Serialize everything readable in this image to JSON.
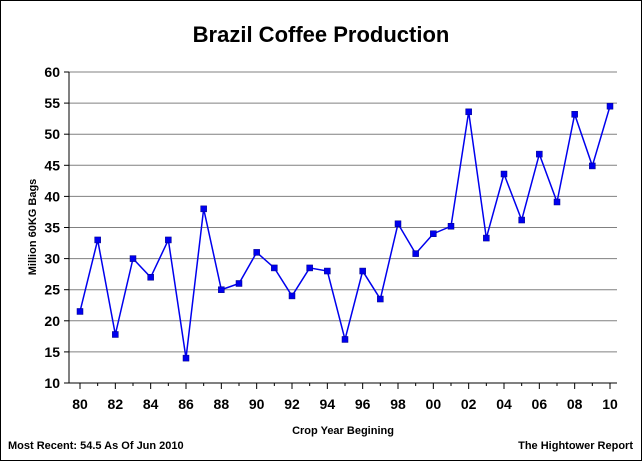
{
  "chart_data": {
    "type": "line",
    "title": "Brazil Coffee Production",
    "xlabel": "Crop Year Begining",
    "ylabel": "Million 60KG Bags",
    "ylim": [
      10,
      60
    ],
    "yticks": [
      10,
      15,
      20,
      25,
      30,
      35,
      40,
      45,
      50,
      55,
      60
    ],
    "grid": true,
    "legend": "none",
    "xtick_labels": [
      "80",
      "82",
      "84",
      "86",
      "88",
      "90",
      "92",
      "94",
      "96",
      "98",
      "00",
      "02",
      "04",
      "06",
      "08",
      "10"
    ],
    "series_color": "#0000ee",
    "x": [
      1980,
      1981,
      1982,
      1983,
      1984,
      1985,
      1986,
      1987,
      1988,
      1989,
      1990,
      1991,
      1992,
      1993,
      1994,
      1995,
      1996,
      1997,
      1998,
      1999,
      2000,
      2001,
      2002,
      2003,
      2004,
      2005,
      2006,
      2007,
      2008,
      2009,
      2010
    ],
    "values": [
      21.5,
      33,
      17.8,
      30,
      27,
      33,
      14,
      38,
      25,
      26,
      31,
      28.5,
      24,
      28.5,
      28,
      17,
      28,
      23.5,
      35.6,
      30.8,
      34,
      35.2,
      53.6,
      33.3,
      43.6,
      36.2,
      46.8,
      39.1,
      53.2,
      44.9,
      54.5
    ]
  },
  "footer": {
    "left": "Most Recent: 54.5 As Of Jun 2010",
    "right": "The Hightower Report"
  }
}
